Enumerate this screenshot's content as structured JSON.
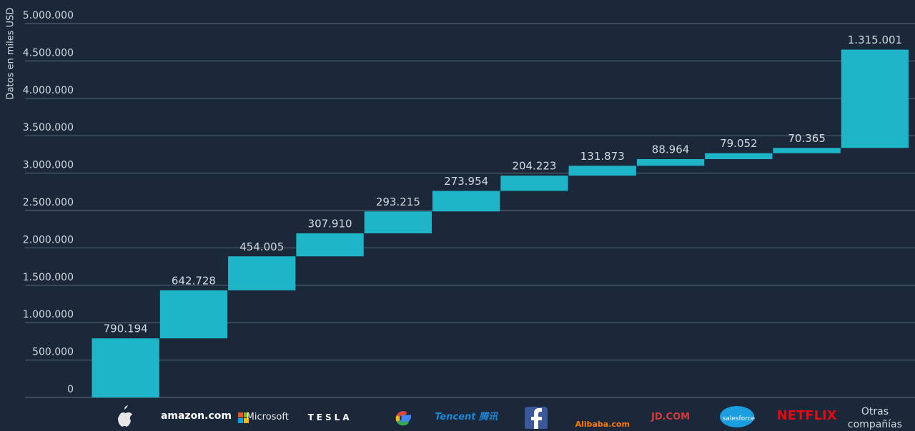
{
  "chart_data": {
    "type": "waterfall",
    "ylabel": "Datos en miles USD",
    "categories": [
      null,
      "amazon.com",
      "Microsoft",
      "TESLA",
      null,
      "Tencent 腾讯",
      null,
      "Alibaba.com",
      "JD.COM",
      "salesforce",
      "NETFLIX",
      "Otras compañías"
    ],
    "values": [
      790194,
      642728,
      454005,
      307910,
      293215,
      273954,
      204223,
      131873,
      88964,
      79052,
      70365,
      1315001
    ],
    "value_labels": [
      "790.194",
      "642.728",
      "454.005",
      "307.910",
      "293.215",
      "273.954",
      "204.223",
      "131.873",
      "88.964",
      "79.052",
      "70.365",
      "1.315.001"
    ],
    "color": "#1fb5c9",
    "ylim": [
      0,
      5000000
    ],
    "yticks": [
      0,
      {
        "value": 500000,
        "label": "500.000"
      },
      {
        "value": 1000000,
        "label": "1.000.000"
      },
      {
        "value": 1500000,
        "label": "1.500.000"
      },
      {
        "value": 2000000,
        "label": "2.000.000"
      },
      {
        "value": 2500000,
        "label": "2.500.000"
      },
      {
        "value": 3000000,
        "label": "3.000.000"
      },
      {
        "value": 3500000,
        "label": "3.500.000"
      },
      {
        "value": 4000000,
        "label": "4.000.000"
      },
      {
        "value": 4500000,
        "label": "4.500.000"
      },
      {
        "value": 5000000,
        "label": "5.000.000"
      }
    ],
    "grid": true
  }
}
